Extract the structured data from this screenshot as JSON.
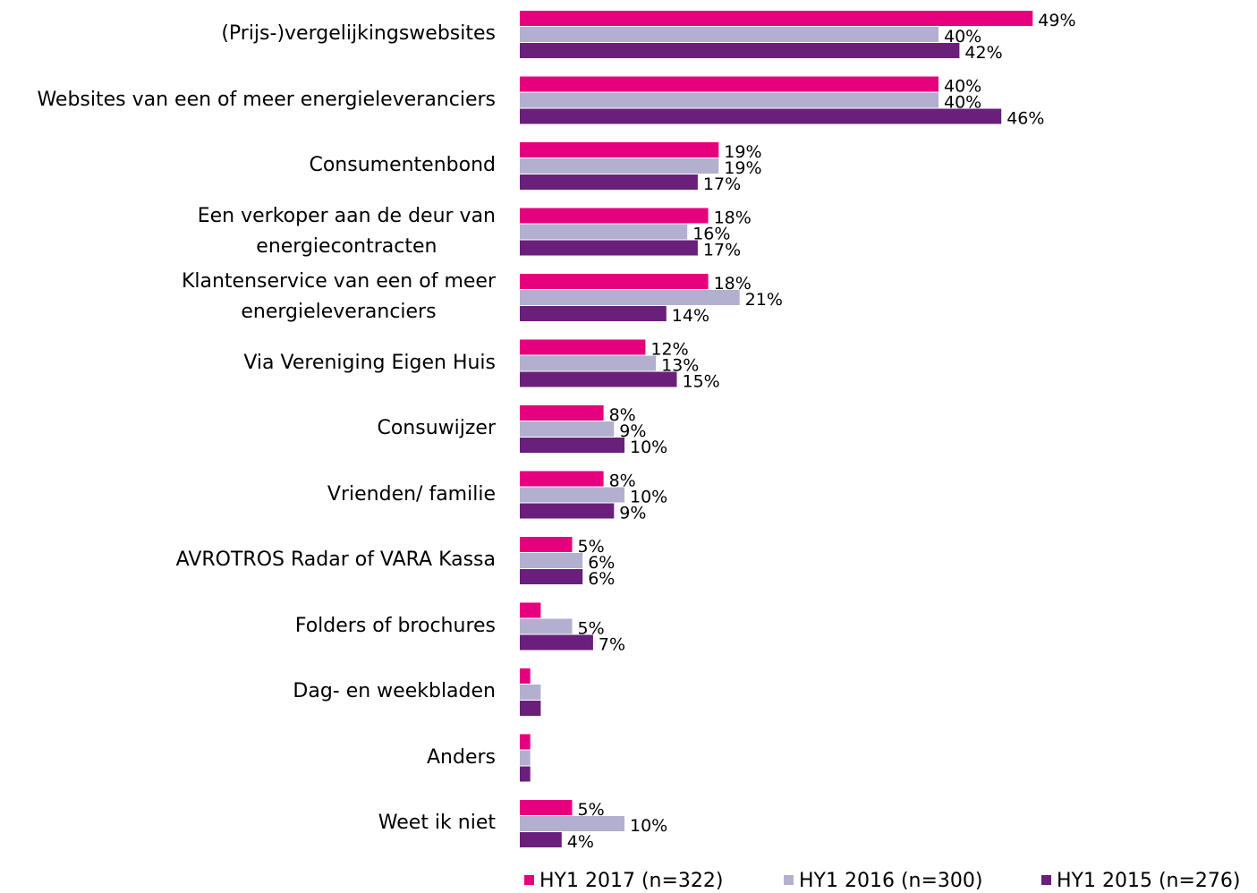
{
  "chart_data": {
    "type": "hbar",
    "categories": [
      "(Prijs-)vergelijkingswebsites",
      "Websites van een of meer energieleveranciers",
      "Consumentenbond",
      "Een verkoper aan de deur van\nenergiecontracten",
      "Klantenservice van een of meer\nenergieleveranciers",
      "Via Vereniging Eigen Huis",
      "Consuwijzer",
      "Vrienden/ familie",
      "AVROTROS Radar of VARA Kassa",
      "Folders of brochures",
      "Dag- en weekbladen",
      "Anders",
      "Weet ik niet"
    ],
    "series": [
      {
        "name": "HY1 2017 (n=322)",
        "color": "#e6007e",
        "values": [
          49,
          40,
          19,
          18,
          18,
          12,
          8,
          8,
          5,
          2,
          1,
          1,
          5
        ],
        "value_labels": [
          "49%",
          "40%",
          "19%",
          "18%",
          "18%",
          "12%",
          "8%",
          "8%",
          "5%",
          null,
          null,
          null,
          "5%"
        ]
      },
      {
        "name": "HY1 2016 (n=300)",
        "color": "#b3b0cf",
        "values": [
          40,
          40,
          19,
          16,
          21,
          13,
          9,
          10,
          6,
          5,
          2,
          1,
          10
        ],
        "value_labels": [
          "40%",
          "40%",
          "19%",
          "16%",
          "21%",
          "13%",
          "9%",
          "10%",
          "6%",
          "5%",
          null,
          null,
          "10%"
        ]
      },
      {
        "name": "HY1 2015 (n=276)",
        "color": "#6a1f7a",
        "values": [
          42,
          46,
          17,
          17,
          14,
          15,
          10,
          9,
          6,
          7,
          2,
          1,
          4
        ],
        "value_labels": [
          "42%",
          "46%",
          "17%",
          "17%",
          "14%",
          "15%",
          "10%",
          "9%",
          "6%",
          "7%",
          null,
          null,
          "4%"
        ]
      }
    ],
    "xlim": [
      0,
      70
    ],
    "legend": "bottom"
  }
}
